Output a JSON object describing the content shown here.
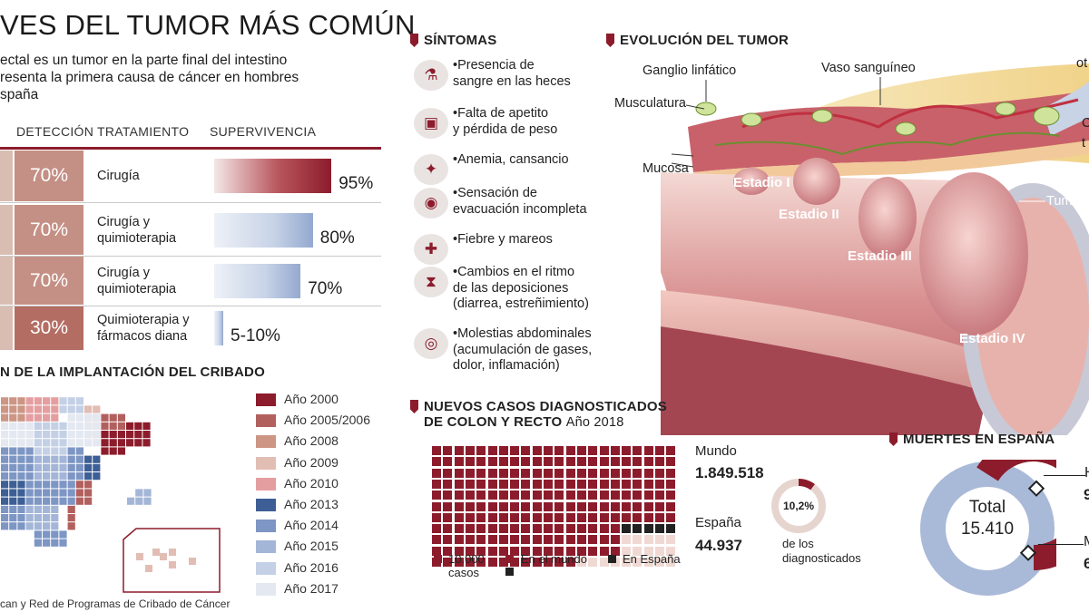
{
  "header": {
    "title": "VES DEL TUMOR MÁS COMÚN",
    "subtitle_lines": [
      "ectal es un tumor en la parte final del intestino",
      "resenta la primera causa de cáncer en hombres",
      "spaña"
    ]
  },
  "table": {
    "columns": [
      "DETECCIÓN",
      "TRATAMIENTO",
      "SUPERVIVENCIA"
    ],
    "rows": [
      {
        "detection": "70%",
        "treatment_lines": [
          "Cirugía"
        ],
        "survival": "95%",
        "survival_pct": 95,
        "bar_color": "red"
      },
      {
        "detection": "70%",
        "treatment_lines": [
          "Cirugía y",
          "quimioterapia"
        ],
        "survival": "80%",
        "survival_pct": 80,
        "bar_color": "blue"
      },
      {
        "detection": "70%",
        "treatment_lines": [
          "Cirugía y",
          "quimioterapia"
        ],
        "survival": "70%",
        "survival_pct": 70,
        "bar_color": "blue"
      },
      {
        "detection": "30%",
        "treatment_lines": [
          "Quimioterapia y",
          "fármacos diana"
        ],
        "survival": "5-10%",
        "survival_pct": 7,
        "bar_color": "blue"
      }
    ]
  },
  "screening": {
    "heading": "N DE LA IMPLANTACIÓN DEL CRIBADO",
    "legend": [
      {
        "label": "Año 2000",
        "color": "#8c1c2c"
      },
      {
        "label": "Año 2005/2006",
        "color": "#b2605e"
      },
      {
        "label": "Año 2008",
        "color": "#cc9584"
      },
      {
        "label": "Año 2009",
        "color": "#e2bdb4"
      },
      {
        "label": "Año 2010",
        "color": "#e49ea0"
      },
      {
        "label": "Año 2013",
        "color": "#3d5f96"
      },
      {
        "label": "Año 2014",
        "color": "#7d96c4"
      },
      {
        "label": "Año 2015",
        "color": "#a3b6d8"
      },
      {
        "label": "Año 2016",
        "color": "#c3d0e6"
      },
      {
        "label": "Año 2017",
        "color": "#e3e8f1"
      }
    ],
    "source": "can y Red de Programas de Cribado de Cáncer"
  },
  "symptoms": {
    "heading": "SÍNTOMAS",
    "items": [
      {
        "icon": "microscope-icon",
        "glyph": "⚗",
        "lines": [
          "•Presencia de",
          "sangre en las heces"
        ]
      },
      {
        "icon": "scale-icon",
        "glyph": "▣",
        "lines": [
          "•Falta de apetito",
          "y pérdida de peso"
        ]
      },
      {
        "icon": "person-icon",
        "glyph": "✦",
        "lines": [
          "•Anemia, cansancio"
        ]
      },
      {
        "icon": "body-icon",
        "glyph": "◉",
        "lines": [
          "•Sensación de",
          "evacuación incompleta"
        ]
      },
      {
        "icon": "fever-icon",
        "glyph": "✚",
        "lines": [
          "•Fiebre y mareos"
        ]
      },
      {
        "icon": "hourglass-icon",
        "glyph": "⧗",
        "lines": [
          "•Cambios en el ritmo",
          "de las deposiciones",
          "(diarrea, estreñimiento)"
        ]
      },
      {
        "icon": "abdomen-icon",
        "glyph": "◎",
        "lines": [
          "•Molestias abdominales",
          "(acumulación de gases,",
          "dolor, inflamación)"
        ]
      }
    ]
  },
  "evolution": {
    "heading": "EVOLUCIÓN DEL TUMOR",
    "labels": {
      "ganglio": "Ganglio linfático",
      "vaso": "Vaso sanguíneo",
      "musculatura": "Musculatura",
      "mucosa": "Mucosa",
      "tumor": "Tumor",
      "otros_partial": "ot",
      "right_c": "C",
      "right_t": "t"
    },
    "stages": [
      "Estadio I",
      "Estadio II",
      "Estadio III",
      "Estadio IV"
    ]
  },
  "new_cases": {
    "heading_lines": [
      "NUEVOS CASOS DIAGNOSTICADOS",
      "DE COLON Y RECTO"
    ],
    "year": "Año 2018",
    "world_label": "Mundo",
    "world_value": "1.849.518",
    "spain_label": "España",
    "spain_value": "44.937",
    "pct": "10,2%",
    "pct_value": 10.2,
    "pct_caption_lines": [
      "de los",
      "diagnosticados"
    ],
    "legend_unit_lines": [
      "10.000",
      "casos"
    ],
    "legend_world": "En el mundo",
    "legend_spain": "En España"
  },
  "deaths": {
    "heading": "MUERTES EN ESPAÑA",
    "total_label": "Total",
    "total_value": "15.410",
    "right_h": "H",
    "right_h_num": "9",
    "right_m": "M",
    "right_m_num": "6",
    "colors": {
      "men": "#8c1c2c",
      "women": "#a9b9d8"
    }
  }
}
